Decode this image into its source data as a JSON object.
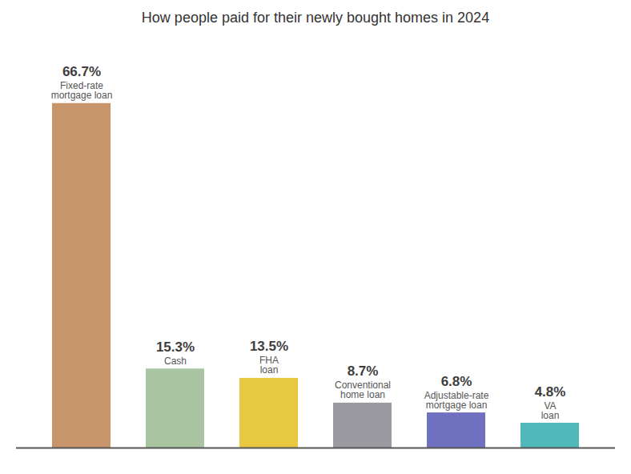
{
  "chart_data": {
    "type": "bar",
    "title": "How people paid for their newly bought homes in 2024",
    "categories": [
      "Fixed-rate\nmortgage loan",
      "Cash",
      "FHA\nloan",
      "Conventional\nhome loan",
      "Adjustable-rate\nmortgage loan",
      "VA\nloan"
    ],
    "values": [
      66.7,
      15.3,
      13.5,
      8.7,
      6.8,
      4.8
    ],
    "value_labels": [
      "66.7%",
      "15.3%",
      "13.5%",
      "8.7%",
      "6.8%",
      "4.8%"
    ],
    "colors": [
      "#C8956A",
      "#A8C4A0",
      "#E8C840",
      "#9A9AA0",
      "#7070C0",
      "#50B8B8"
    ],
    "ylim": [
      0,
      80
    ],
    "data_labels": true,
    "tick_labels": false
  }
}
